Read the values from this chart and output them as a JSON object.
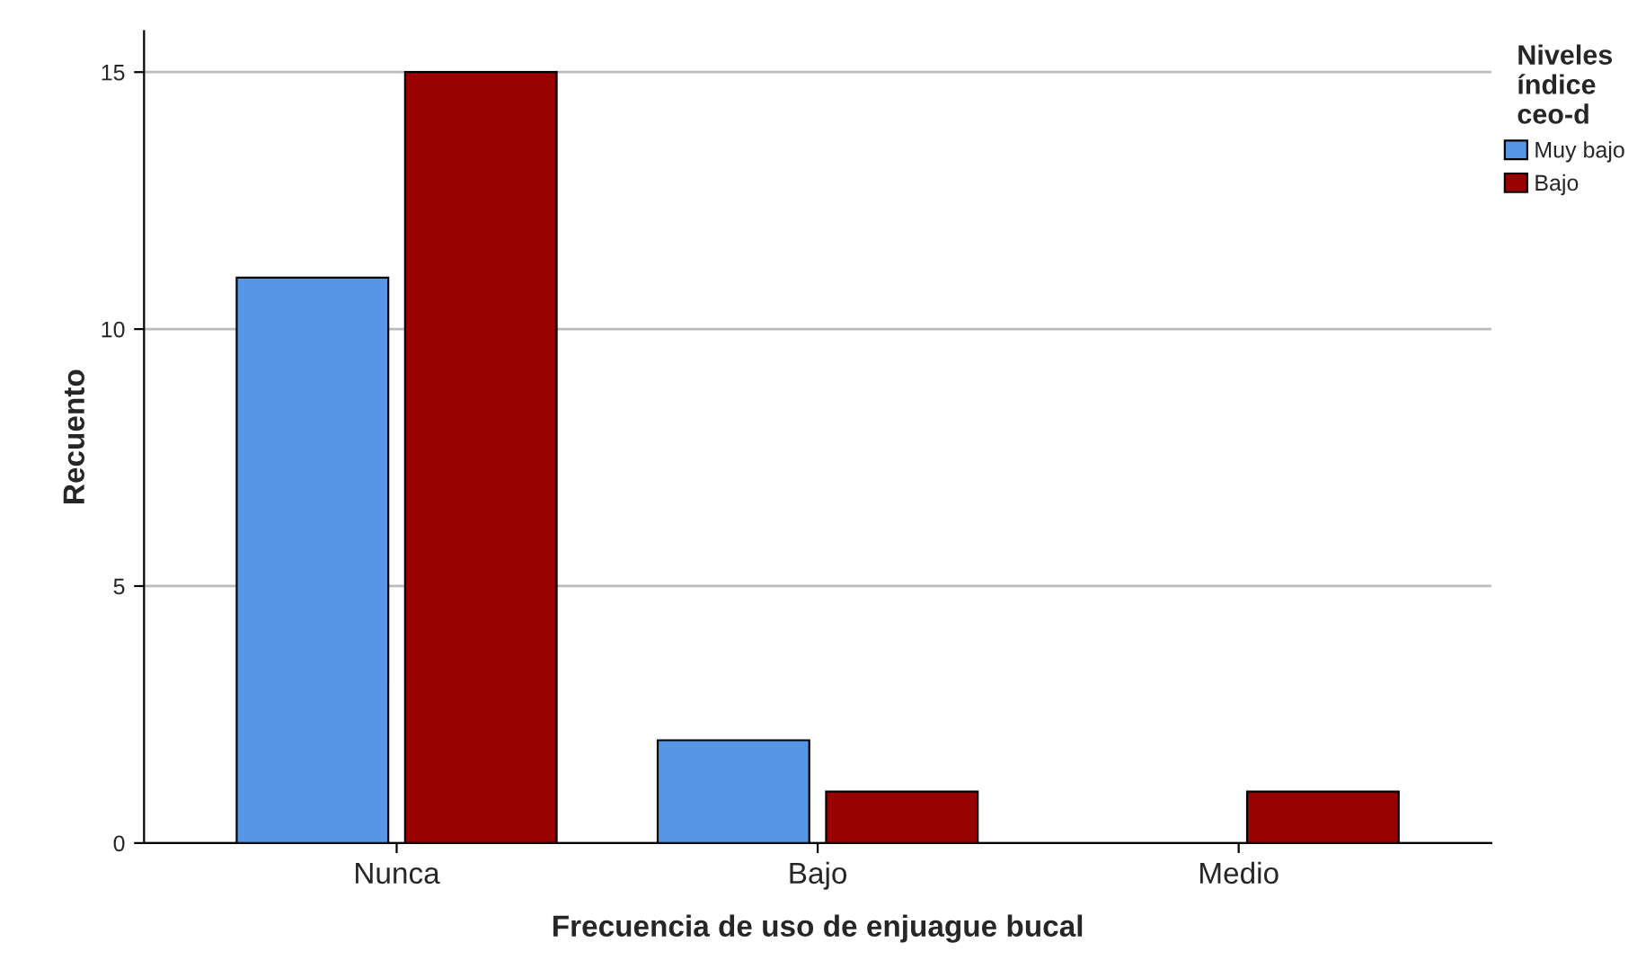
{
  "chart_data": {
    "type": "bar",
    "xlabel": "Frecuencia de uso de enjuague bucal",
    "ylabel": "Recuento",
    "legend_title": "Niveles\níndice\nceo-d",
    "categories": [
      "Nunca",
      "Bajo",
      "Medio"
    ],
    "series": [
      {
        "name": "Muy bajo",
        "color": "#5597e6",
        "values": [
          11,
          2,
          null
        ]
      },
      {
        "name": "Bajo",
        "color": "#990000",
        "values": [
          15,
          1,
          1
        ]
      }
    ],
    "ylim": [
      0,
      15.8
    ],
    "yticks": [
      0,
      5,
      10,
      15
    ],
    "grid": "y",
    "legend": "top right"
  }
}
